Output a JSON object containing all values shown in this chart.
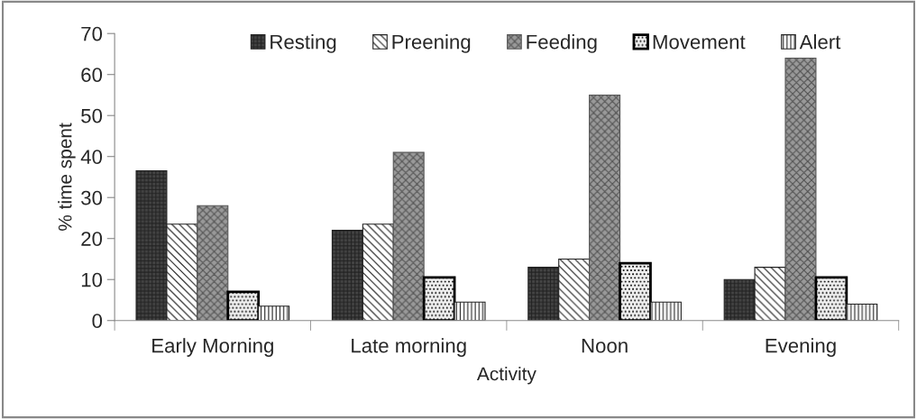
{
  "chart_data": {
    "type": "bar",
    "xlabel": "Activity",
    "ylabel": "% time spent",
    "categories": [
      "Early Morning",
      "Late morning",
      "Noon",
      "Evening"
    ],
    "series": [
      {
        "name": "Resting",
        "color": "#222222",
        "values": [
          36.5,
          22,
          13,
          10
        ]
      },
      {
        "name": "Preening",
        "color": "#222222",
        "values": [
          23.5,
          23.5,
          15,
          13
        ]
      },
      {
        "name": "Feeding",
        "color": "#555555",
        "values": [
          28,
          41,
          55,
          64
        ]
      },
      {
        "name": "Movement",
        "color": "#000000",
        "values": [
          7,
          10.5,
          14,
          10.5
        ]
      },
      {
        "name": "Alert",
        "color": "#222222",
        "values": [
          3.5,
          4.5,
          4.5,
          4
        ]
      }
    ],
    "ylim": [
      0,
      70
    ],
    "yticks": [
      0,
      10,
      20,
      30,
      40,
      50,
      60,
      70
    ],
    "grid": false,
    "legend": "top"
  }
}
